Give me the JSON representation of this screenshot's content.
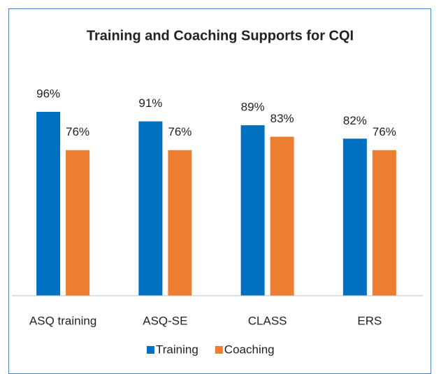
{
  "chart_data": {
    "type": "bar",
    "title": "Training and Coaching Supports for CQI",
    "categories": [
      "ASQ training",
      "ASQ-SE",
      "CLASS",
      "ERS"
    ],
    "series": [
      {
        "name": "Training",
        "color": "#0070c0",
        "values": [
          96,
          91,
          89,
          82
        ],
        "value_labels": [
          "96%",
          "91%",
          "89%",
          "82%"
        ]
      },
      {
        "name": "Coaching",
        "color": "#ed7d31",
        "values": [
          76,
          76,
          83,
          76
        ],
        "value_labels": [
          "76%",
          "76%",
          "83%",
          "76%"
        ]
      }
    ],
    "ylim": [
      0,
      100
    ],
    "legend": "bottom"
  }
}
